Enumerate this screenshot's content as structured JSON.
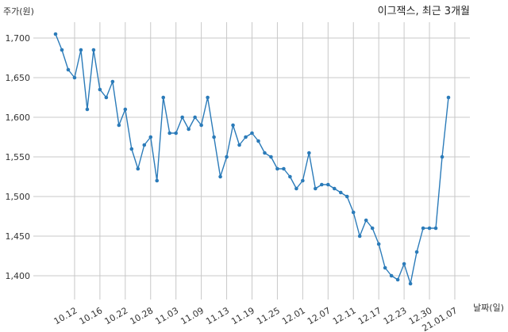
{
  "chart_data": {
    "type": "line",
    "title": "이그잭스, 최근 3개월",
    "ylabel": "주가(원)",
    "xlabel": "날짜(일)",
    "ylim": [
      1370,
      1720
    ],
    "yticks": [
      1400,
      1450,
      1500,
      1550,
      1600,
      1650,
      1700
    ],
    "ytick_labels": [
      "1,400",
      "1,450",
      "1,500",
      "1,550",
      "1,600",
      "1,650",
      "1,700"
    ],
    "grid": true,
    "line_color": "#2b7bb9",
    "grid_color": "#c8c8c8",
    "xtick_labels": [
      {
        "label": "10.12",
        "index": 3
      },
      {
        "label": "10.16",
        "index": 7
      },
      {
        "label": "10.22",
        "index": 11
      },
      {
        "label": "10.28",
        "index": 15
      },
      {
        "label": "11.03",
        "index": 19
      },
      {
        "label": "11.09",
        "index": 23
      },
      {
        "label": "11.13",
        "index": 27
      },
      {
        "label": "11.19",
        "index": 31
      },
      {
        "label": "11.25",
        "index": 35
      },
      {
        "label": "12.01",
        "index": 39
      },
      {
        "label": "12.07",
        "index": 43
      },
      {
        "label": "12.11",
        "index": 47
      },
      {
        "label": "12.17",
        "index": 51
      },
      {
        "label": "12.23",
        "index": 55
      },
      {
        "label": "12.30",
        "index": 59
      },
      {
        "label": "21.01.07",
        "index": 63
      }
    ],
    "series": [
      {
        "values": [
          1705,
          1685,
          1660,
          1650,
          1685,
          1610,
          1685,
          1635,
          1625,
          1645,
          1590,
          1610,
          1560,
          1535,
          1565,
          1575,
          1520,
          1625,
          1580,
          1580,
          1600,
          1585,
          1600,
          1590,
          1625,
          1575,
          1525,
          1550,
          1590,
          1565,
          1575,
          1580,
          1570,
          1555,
          1550,
          1535,
          1535,
          1525,
          1510,
          1520,
          1555,
          1510,
          1515,
          1515,
          1510,
          1505,
          1500,
          1480,
          1450,
          1470,
          1460,
          1440,
          1410,
          1400,
          1395,
          1415,
          1390,
          1430,
          1460,
          1460,
          1460,
          1550,
          1625
        ]
      }
    ]
  }
}
